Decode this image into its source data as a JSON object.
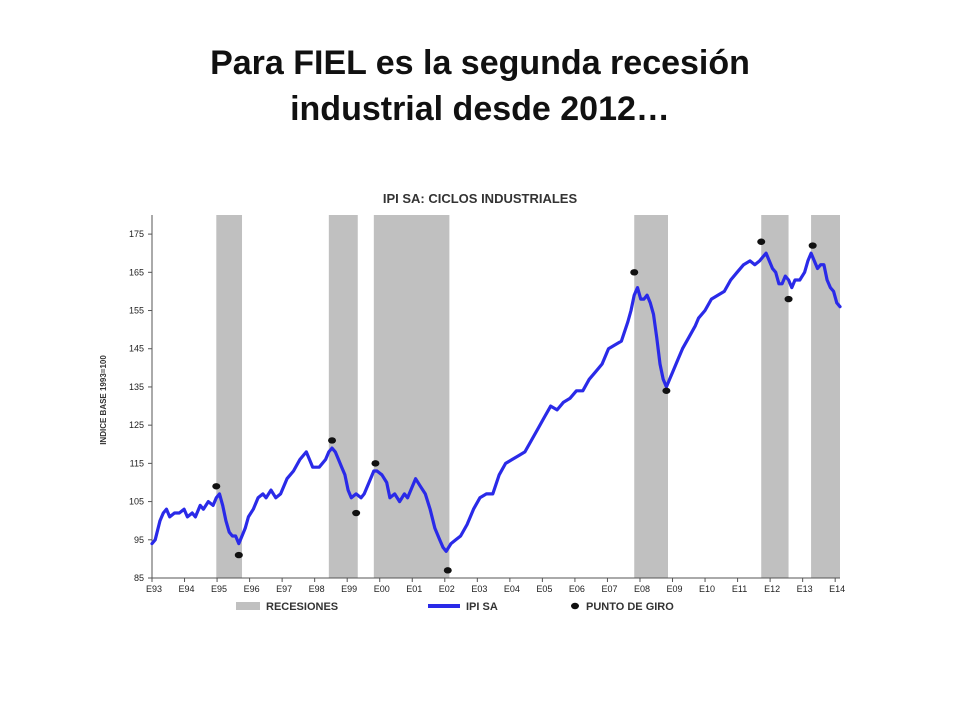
{
  "slide": {
    "title_line1": "Para FIEL es la segunda recesión",
    "title_line2": "industrial desde 2012…"
  },
  "chart_data": {
    "type": "line",
    "title": "IPI SA: CICLOS INDUSTRIALES",
    "ylabel": "INDICE BASE 1993=100",
    "ylim": [
      85,
      180
    ],
    "yticks": [
      85,
      95,
      105,
      115,
      125,
      135,
      145,
      155,
      165,
      175
    ],
    "x_tick_labels": [
      "E93",
      "E94",
      "E95",
      "E96",
      "E97",
      "E98",
      "E99",
      "E00",
      "E01",
      "E02",
      "E03",
      "E04",
      "E05",
      "E06",
      "E07",
      "E08",
      "E09",
      "E10",
      "E11",
      "E12",
      "E13",
      "E14"
    ],
    "x_range": [
      1993.0,
      2014.4
    ],
    "grid": false,
    "legend_position": "bottom",
    "colors": {
      "line": "#2a2ae8",
      "recession": "#c0c0c0",
      "turning_point": "#111111"
    },
    "legend": {
      "recessions": "RECESIONES",
      "ipi": "IPI SA",
      "turning_points": "PUNTO DE GIRO"
    },
    "recessions": [
      [
        1995.0,
        1995.8
      ],
      [
        1998.5,
        1999.4
      ],
      [
        1999.9,
        2002.25
      ],
      [
        2008.0,
        2009.05
      ],
      [
        2011.95,
        2012.8
      ],
      [
        2013.5,
        2014.4
      ]
    ],
    "series": [
      {
        "values": [
          [
            1993.0,
            94
          ],
          [
            1993.1,
            95
          ],
          [
            1993.25,
            100
          ],
          [
            1993.35,
            102
          ],
          [
            1993.45,
            103
          ],
          [
            1993.55,
            101
          ],
          [
            1993.7,
            102
          ],
          [
            1993.85,
            102
          ],
          [
            1994.0,
            103
          ],
          [
            1994.1,
            101
          ],
          [
            1994.25,
            102
          ],
          [
            1994.35,
            101
          ],
          [
            1994.5,
            104
          ],
          [
            1994.6,
            103
          ],
          [
            1994.75,
            105
          ],
          [
            1994.9,
            104
          ],
          [
            1995.0,
            106
          ],
          [
            1995.1,
            107
          ],
          [
            1995.2,
            104
          ],
          [
            1995.3,
            100
          ],
          [
            1995.4,
            97
          ],
          [
            1995.5,
            96
          ],
          [
            1995.6,
            96
          ],
          [
            1995.7,
            94
          ],
          [
            1995.8,
            96
          ],
          [
            1995.9,
            98
          ],
          [
            1996.0,
            101
          ],
          [
            1996.15,
            103
          ],
          [
            1996.3,
            106
          ],
          [
            1996.45,
            107
          ],
          [
            1996.55,
            106
          ],
          [
            1996.7,
            108
          ],
          [
            1996.85,
            106
          ],
          [
            1997.0,
            107
          ],
          [
            1997.2,
            111
          ],
          [
            1997.4,
            113
          ],
          [
            1997.6,
            116
          ],
          [
            1997.8,
            118
          ],
          [
            1997.9,
            116
          ],
          [
            1998.0,
            114
          ],
          [
            1998.2,
            114
          ],
          [
            1998.4,
            116
          ],
          [
            1998.5,
            118
          ],
          [
            1998.6,
            119
          ],
          [
            1998.7,
            118
          ],
          [
            1998.8,
            116
          ],
          [
            1998.9,
            114
          ],
          [
            1999.0,
            112
          ],
          [
            1999.1,
            108
          ],
          [
            1999.2,
            106
          ],
          [
            1999.35,
            107
          ],
          [
            1999.5,
            106
          ],
          [
            1999.6,
            107
          ],
          [
            1999.75,
            110
          ],
          [
            1999.9,
            113
          ],
          [
            2000.0,
            113
          ],
          [
            2000.15,
            112
          ],
          [
            2000.3,
            110
          ],
          [
            2000.4,
            106
          ],
          [
            2000.55,
            107
          ],
          [
            2000.7,
            105
          ],
          [
            2000.85,
            107
          ],
          [
            2000.95,
            106
          ],
          [
            2001.05,
            108
          ],
          [
            2001.2,
            111
          ],
          [
            2001.35,
            109
          ],
          [
            2001.5,
            107
          ],
          [
            2001.65,
            103
          ],
          [
            2001.8,
            98
          ],
          [
            2001.95,
            95
          ],
          [
            2002.05,
            93
          ],
          [
            2002.15,
            92
          ],
          [
            2002.3,
            94
          ],
          [
            2002.45,
            95
          ],
          [
            2002.6,
            96
          ],
          [
            2002.8,
            99
          ],
          [
            2003.0,
            103
          ],
          [
            2003.2,
            106
          ],
          [
            2003.4,
            107
          ],
          [
            2003.6,
            107
          ],
          [
            2003.8,
            112
          ],
          [
            2004.0,
            115
          ],
          [
            2004.2,
            116
          ],
          [
            2004.4,
            117
          ],
          [
            2004.6,
            118
          ],
          [
            2004.8,
            121
          ],
          [
            2005.0,
            124
          ],
          [
            2005.2,
            127
          ],
          [
            2005.4,
            130
          ],
          [
            2005.6,
            129
          ],
          [
            2005.8,
            131
          ],
          [
            2006.0,
            132
          ],
          [
            2006.2,
            134
          ],
          [
            2006.4,
            134
          ],
          [
            2006.6,
            137
          ],
          [
            2006.8,
            139
          ],
          [
            2007.0,
            141
          ],
          [
            2007.2,
            145
          ],
          [
            2007.4,
            146
          ],
          [
            2007.6,
            147
          ],
          [
            2007.8,
            152
          ],
          [
            2007.9,
            155
          ],
          [
            2008.0,
            159
          ],
          [
            2008.1,
            161
          ],
          [
            2008.2,
            158
          ],
          [
            2008.3,
            158
          ],
          [
            2008.4,
            159
          ],
          [
            2008.5,
            157
          ],
          [
            2008.6,
            154
          ],
          [
            2008.7,
            148
          ],
          [
            2008.8,
            141
          ],
          [
            2008.9,
            137
          ],
          [
            2009.0,
            135
          ],
          [
            2009.1,
            137
          ],
          [
            2009.2,
            139
          ],
          [
            2009.35,
            142
          ],
          [
            2009.5,
            145
          ],
          [
            2009.7,
            148
          ],
          [
            2009.9,
            151
          ],
          [
            2010.0,
            153
          ],
          [
            2010.2,
            155
          ],
          [
            2010.4,
            158
          ],
          [
            2010.6,
            159
          ],
          [
            2010.8,
            160
          ],
          [
            2011.0,
            163
          ],
          [
            2011.2,
            165
          ],
          [
            2011.4,
            167
          ],
          [
            2011.6,
            168
          ],
          [
            2011.75,
            167
          ],
          [
            2011.9,
            168
          ],
          [
            2012.0,
            169
          ],
          [
            2012.1,
            170
          ],
          [
            2012.2,
            168
          ],
          [
            2012.3,
            166
          ],
          [
            2012.4,
            165
          ],
          [
            2012.5,
            162
          ],
          [
            2012.6,
            162
          ],
          [
            2012.7,
            164
          ],
          [
            2012.8,
            163
          ],
          [
            2012.9,
            161
          ],
          [
            2013.0,
            163
          ],
          [
            2013.15,
            163
          ],
          [
            2013.3,
            165
          ],
          [
            2013.4,
            168
          ],
          [
            2013.5,
            170
          ],
          [
            2013.6,
            168
          ],
          [
            2013.7,
            166
          ],
          [
            2013.8,
            167
          ],
          [
            2013.9,
            167
          ],
          [
            2014.0,
            163
          ],
          [
            2014.1,
            161
          ],
          [
            2014.2,
            160
          ],
          [
            2014.3,
            157
          ],
          [
            2014.4,
            156
          ]
        ]
      }
    ],
    "turning_points": [
      [
        1995.0,
        109
      ],
      [
        1995.7,
        91
      ],
      [
        1998.6,
        121
      ],
      [
        1999.35,
        102
      ],
      [
        1999.95,
        115
      ],
      [
        2002.2,
        87
      ],
      [
        2008.0,
        165
      ],
      [
        2009.0,
        134
      ],
      [
        2011.95,
        173
      ],
      [
        2012.8,
        158
      ],
      [
        2013.55,
        172
      ]
    ]
  }
}
